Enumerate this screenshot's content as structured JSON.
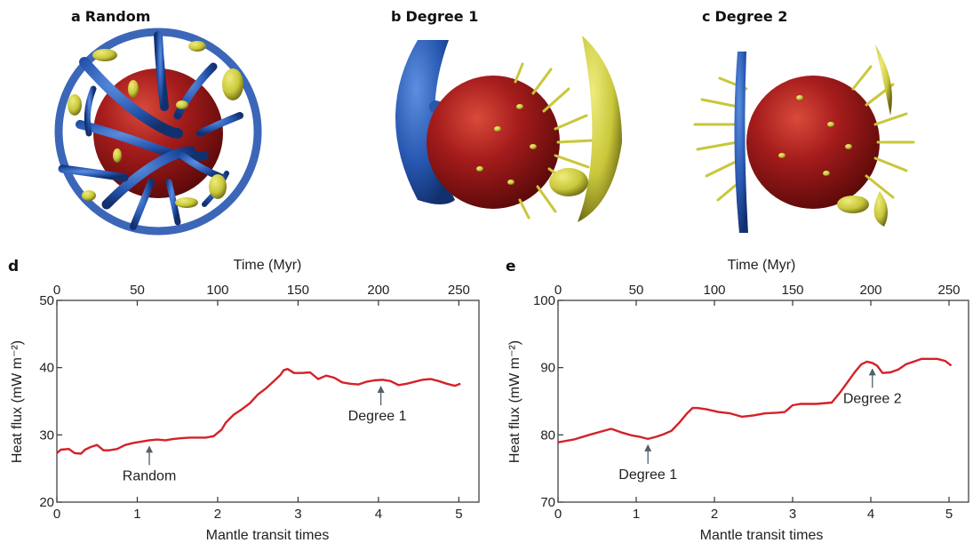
{
  "panels": {
    "a": {
      "letter": "a",
      "title": "Random"
    },
    "b": {
      "letter": "b",
      "title": "Degree 1"
    },
    "c": {
      "letter": "c",
      "title": "Degree 2"
    },
    "d": {
      "letter": "d"
    },
    "e": {
      "letter": "e"
    }
  },
  "colors": {
    "core": "#a51c1c",
    "cold": "#2757b0",
    "hot": "#c9c73a",
    "curve": "#d42127",
    "axis": "#333333",
    "arrow": "#555f66"
  },
  "chart_data": [
    {
      "type": "line",
      "panel": "d",
      "title": "",
      "xlabel": "Mantle transit times",
      "x2label": "Time (Myr)",
      "ylabel": "Heat flux (mW m⁻²)",
      "xlim": [
        0,
        5.25
      ],
      "x2lim": [
        0,
        262.5
      ],
      "ylim": [
        20,
        50
      ],
      "xticks": [
        0,
        1,
        2,
        3,
        4,
        5
      ],
      "x2ticks": [
        0,
        50,
        100,
        150,
        200,
        250
      ],
      "yticks": [
        20,
        30,
        40,
        50
      ],
      "grid": false,
      "series": [
        {
          "x": [
            0,
            0.05,
            0.15,
            0.22,
            0.3,
            0.35,
            0.42,
            0.5,
            0.58,
            0.65,
            0.75,
            0.85,
            0.95,
            1.05,
            1.15,
            1.25,
            1.35,
            1.45,
            1.55,
            1.65,
            1.75,
            1.85,
            1.95,
            2.05,
            2.1,
            2.2,
            2.3,
            2.4,
            2.5,
            2.6,
            2.7,
            2.78,
            2.82,
            2.87,
            2.95,
            3.05,
            3.15,
            3.25,
            3.35,
            3.45,
            3.55,
            3.65,
            3.75,
            3.85,
            3.95,
            4.05,
            4.15,
            4.25,
            4.35,
            4.45,
            4.55,
            4.65,
            4.75,
            4.85,
            4.95,
            5.02
          ],
          "y": [
            27.3,
            27.8,
            27.9,
            27.3,
            27.2,
            27.8,
            28.2,
            28.5,
            27.7,
            27.7,
            27.9,
            28.5,
            28.8,
            29.0,
            29.2,
            29.3,
            29.2,
            29.4,
            29.5,
            29.6,
            29.6,
            29.6,
            29.8,
            30.8,
            31.8,
            33.0,
            33.8,
            34.7,
            36.0,
            36.9,
            38.0,
            38.9,
            39.6,
            39.8,
            39.2,
            39.2,
            39.3,
            38.3,
            38.8,
            38.5,
            37.8,
            37.6,
            37.5,
            37.9,
            38.1,
            38.2,
            38.0,
            37.4,
            37.6,
            37.9,
            38.2,
            38.3,
            38.0,
            37.6,
            37.3,
            37.6
          ]
        }
      ],
      "annotations": [
        {
          "text": "Random",
          "x": 1.15,
          "y": 29.2
        },
        {
          "text": "Degree 1",
          "x": 4.03,
          "y": 38.1
        }
      ]
    },
    {
      "type": "line",
      "panel": "e",
      "title": "",
      "xlabel": "Mantle transit times",
      "x2label": "Time (Myr)",
      "ylabel": "Heat flux (mW m⁻²)",
      "xlim": [
        0,
        5.25
      ],
      "x2lim": [
        0,
        262.5
      ],
      "ylim": [
        70,
        100
      ],
      "xticks": [
        0,
        1,
        2,
        3,
        4,
        5
      ],
      "x2ticks": [
        0,
        50,
        100,
        150,
        200,
        250
      ],
      "yticks": [
        70,
        80,
        90,
        100
      ],
      "grid": false,
      "series": [
        {
          "x": [
            0,
            0.2,
            0.4,
            0.55,
            0.68,
            0.8,
            0.95,
            1.05,
            1.15,
            1.25,
            1.35,
            1.45,
            1.55,
            1.65,
            1.72,
            1.78,
            1.9,
            2.05,
            2.2,
            2.35,
            2.5,
            2.65,
            2.8,
            2.9,
            3.0,
            3.1,
            3.3,
            3.5,
            3.6,
            3.7,
            3.8,
            3.88,
            3.95,
            4.02,
            4.08,
            4.15,
            4.25,
            4.35,
            4.45,
            4.55,
            4.65,
            4.75,
            4.85,
            4.95,
            5.03
          ],
          "y": [
            78.9,
            79.3,
            80.0,
            80.5,
            80.9,
            80.4,
            79.9,
            79.7,
            79.4,
            79.7,
            80.1,
            80.6,
            81.8,
            83.2,
            84.0,
            84.0,
            83.8,
            83.4,
            83.2,
            82.7,
            82.9,
            83.2,
            83.3,
            83.4,
            84.4,
            84.6,
            84.6,
            84.8,
            86.2,
            87.8,
            89.4,
            90.5,
            90.9,
            90.7,
            90.3,
            89.2,
            89.3,
            89.7,
            90.5,
            90.9,
            91.3,
            91.3,
            91.3,
            91.0,
            90.3
          ]
        }
      ],
      "annotations": [
        {
          "text": "Degree 1",
          "x": 1.15,
          "y": 79.4
        },
        {
          "text": "Degree 2",
          "x": 4.02,
          "y": 90.7
        }
      ]
    }
  ]
}
